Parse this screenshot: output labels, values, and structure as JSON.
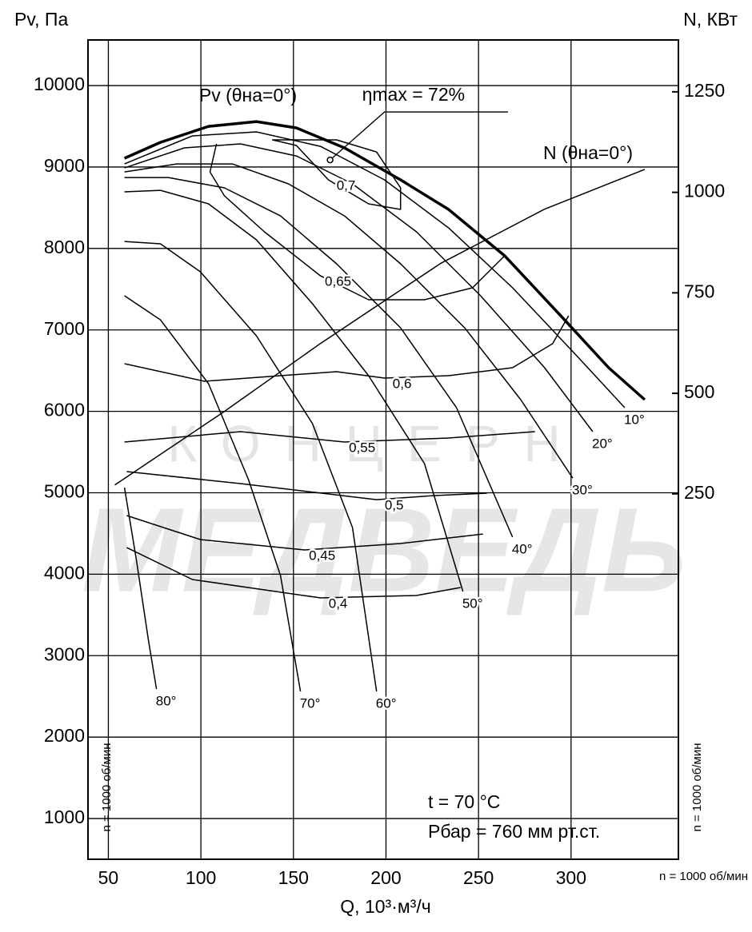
{
  "chart_data": {
    "type": "line",
    "y_title": "Pv, Па",
    "y2_title": "N, КВт",
    "x_title": "Q, 10³·м³/ч",
    "speed_labels": [
      "n = 1000 об/мин",
      "n = 1000 об/мин",
      "n = 1000 об/мин"
    ],
    "notes": [
      "t = 70 °C",
      "Рбар = 760 мм рт.ст."
    ],
    "watermark": [
      "КОНЦЕРН",
      "МЕДВЕДЬ"
    ],
    "xlim": [
      39,
      358
    ],
    "xticks": [
      50,
      100,
      150,
      200,
      250,
      300
    ],
    "ylim": [
      500,
      10560
    ],
    "yticks": [
      1000,
      2000,
      3000,
      4000,
      5000,
      6000,
      7000,
      8000,
      9000,
      10000
    ],
    "y2lim": [
      -659,
      1379
    ],
    "y2ticks": [
      250,
      500,
      750,
      1000,
      1250
    ],
    "grid": true,
    "series": [
      {
        "name": "Pv (θна=0°)",
        "color": "#000000",
        "x": [
          58.7,
          78.1,
          104.1,
          130.0,
          151.6,
          177.6,
          207.9,
          233.8,
          264.1,
          294.4,
          320.3,
          339.8
        ],
        "values": [
          9107,
          9303,
          9499,
          9558,
          9480,
          9235,
          8842,
          8479,
          7910,
          7174,
          6536,
          6143
        ]
      },
      {
        "name": "10°",
        "color": "#000000",
        "x": [
          58.7,
          95.4,
          130.0,
          164.6,
          199.2,
          233.8,
          268.4,
          303.0,
          329.0
        ],
        "values": [
          9038,
          9382,
          9431,
          9254,
          8842,
          8253,
          7517,
          6683,
          6045
        ]
      },
      {
        "name": "20°",
        "color": "#000000",
        "x": [
          58.7,
          91.1,
          121.4,
          151.6,
          181.9,
          216.5,
          251.1,
          285.7,
          311.7
        ],
        "values": [
          8989,
          9235,
          9284,
          9136,
          8793,
          8204,
          7419,
          6536,
          5751
        ]
      },
      {
        "name": "30°",
        "color": "#000000",
        "x": [
          58.7,
          86.8,
          117.0,
          147.3,
          177.6,
          207.9,
          242.5,
          272.8,
          300.9
        ],
        "values": [
          8940,
          9038,
          9038,
          8793,
          8400,
          7812,
          7026,
          6143,
          5181
        ]
      },
      {
        "name": "40°",
        "color": "#000000",
        "x": [
          58.7,
          82.4,
          112.7,
          143.0,
          173.3,
          207.9,
          238.1,
          268.4
        ],
        "values": [
          8871,
          8871,
          8744,
          8400,
          7812,
          7026,
          6045,
          4455
        ]
      },
      {
        "name": "50°",
        "color": "#000000",
        "x": [
          58.7,
          78.1,
          104.1,
          130.0,
          160.3,
          190.6,
          220.8,
          241.6
        ],
        "values": [
          8695,
          8714,
          8548,
          8106,
          7321,
          6438,
          5358,
          3788
        ]
      },
      {
        "name": "60°",
        "color": "#000000",
        "x": [
          58.7,
          78.1,
          99.7,
          130.0,
          160.3,
          181.9,
          194.9
        ],
        "values": [
          8086,
          8057,
          7714,
          6928,
          5849,
          4573,
          2561
        ]
      },
      {
        "name": "70°",
        "color": "#000000",
        "x": [
          58.7,
          78.1,
          104.1,
          125.7,
          143.0,
          153.8
        ],
        "values": [
          7419,
          7124,
          6340,
          5162,
          3984,
          2561
        ]
      },
      {
        "name": "80°",
        "color": "#000000",
        "x": [
          58.7,
          65.1,
          71.6,
          76.0
        ],
        "values": [
          5064,
          4180,
          3199,
          2590
        ]
      },
      {
        "name": "0,7",
        "color": "#000000",
        "x": [
          194.9,
          207.9,
          207.9,
          190.6,
          168.9,
          151.6,
          138.7,
          173.3,
          194.9
        ],
        "values": [
          9185,
          8744,
          8479,
          8548,
          8842,
          9264,
          9333,
          9333,
          9185
        ]
      },
      {
        "name": "0,65",
        "color": "#000000",
        "x": [
          108.4,
          104.9,
          112.7,
          134.3,
          164.6,
          190.6,
          220.8,
          246.8,
          264.1
        ],
        "values": [
          9284,
          8940,
          8646,
          8204,
          7664,
          7370,
          7370,
          7517,
          7910
        ]
      },
      {
        "name": "0,6",
        "color": "#000000",
        "x": [
          58.7,
          101.9,
          143.0,
          173.3,
          199.2,
          233.8,
          268.4,
          290.0,
          298.7
        ],
        "values": [
          6585,
          6369,
          6438,
          6487,
          6408,
          6438,
          6536,
          6830,
          7174
        ]
      },
      {
        "name": "0,55",
        "color": "#000000",
        "x": [
          58.7,
          121.4,
          177.6,
          233.8,
          280.5
        ],
        "values": [
          5623,
          5751,
          5623,
          5672,
          5751
        ]
      },
      {
        "name": "0,5",
        "color": "#000000",
        "x": [
          59.9,
          121.4,
          194.9,
          225.2,
          254.6
        ],
        "values": [
          5260,
          5113,
          4916,
          4965,
          4995
        ]
      },
      {
        "name": "0,45",
        "color": "#000000",
        "x": [
          59.9,
          99.7,
          156.0,
          207.9,
          252.4
        ],
        "values": [
          4720,
          4426,
          4298,
          4377,
          4494
        ]
      },
      {
        "name": "0,4",
        "color": "#000000",
        "x": [
          59.9,
          95.4,
          164.6,
          216.5,
          240.3
        ],
        "values": [
          4327,
          3935,
          3709,
          3739,
          3837
        ]
      },
      {
        "name": "N (θна=0°)",
        "color": "#000000",
        "axis": "y2",
        "x": [
          53.5,
          112.7,
          164.6,
          229.5,
          285.7,
          339.8
        ],
        "values": [
          272,
          455,
          624,
          823,
          958,
          1057
        ]
      }
    ],
    "annotation": {
      "text": "ηmax = 72%",
      "x": 169.8,
      "y": 9087
    }
  }
}
